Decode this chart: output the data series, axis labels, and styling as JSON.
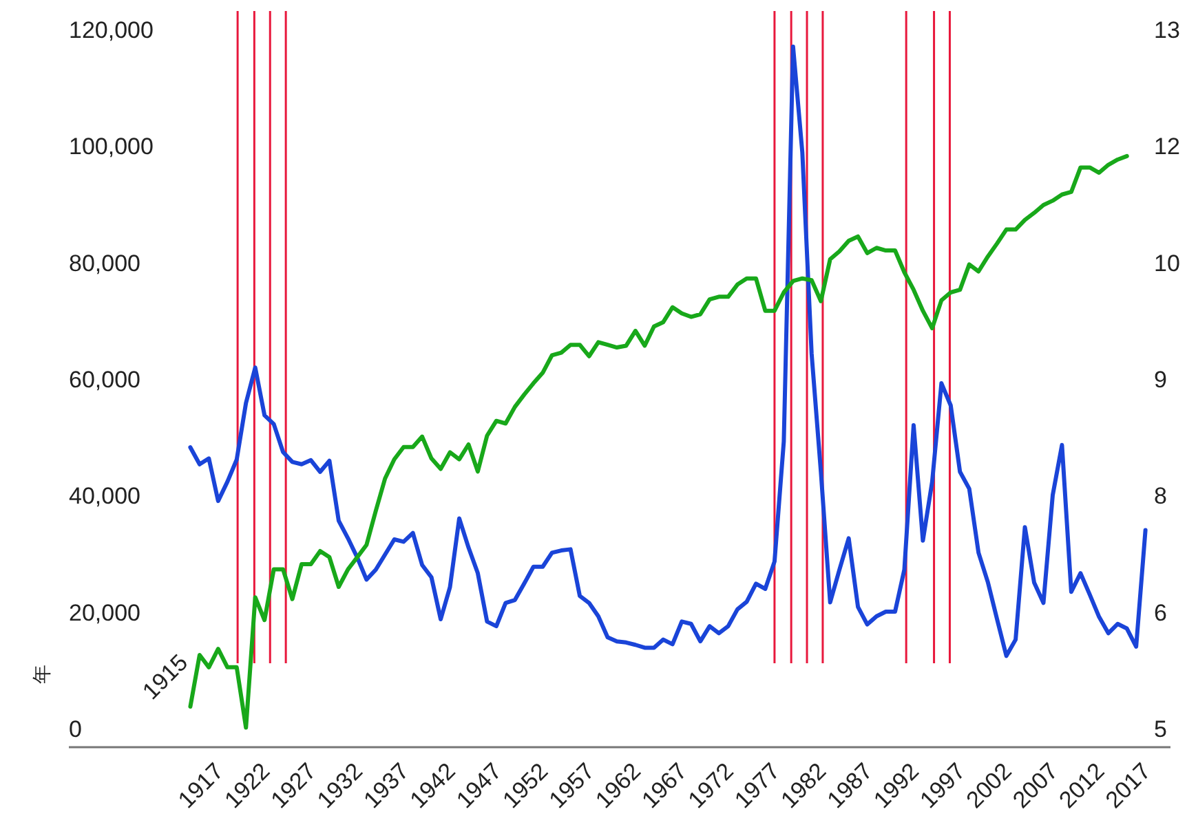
{
  "chart_data": {
    "type": "line",
    "ylabel": "年",
    "annotations": [
      "1915"
    ],
    "xlim": [
      1901.9,
      2020.7
    ],
    "xticks": [
      1917,
      1922,
      1927,
      1932,
      1937,
      1942,
      1947,
      1952,
      1957,
      1962,
      1967,
      1972,
      1977,
      1982,
      1987,
      1992,
      1997,
      2002,
      2007,
      2012,
      2017
    ],
    "ylim": [
      0,
      120000
    ],
    "yticks": [
      0,
      {
        "value": 20000,
        "label": "20,000"
      },
      {
        "value": 40000,
        "label": "40,000"
      },
      {
        "value": 60000,
        "label": "60,000"
      },
      {
        "value": 80000,
        "label": "80,000"
      },
      {
        "value": 100000,
        "label": "100,000"
      },
      {
        "value": 120000,
        "label": "120,000"
      }
    ],
    "y2lim": [
      5,
      13
    ],
    "y2ticks": [
      5,
      {
        "value": 6.333,
        "label": "6"
      },
      {
        "value": 7.667,
        "label": "8"
      },
      9,
      {
        "value": 10.333,
        "label": "10"
      },
      {
        "value": 11.667,
        "label": "12"
      },
      13
    ],
    "series": [
      {
        "color": "#1a44d8",
        "x": [
          1915,
          1916,
          1917,
          1918,
          1919,
          1920,
          1921,
          1922,
          1923,
          1924,
          1925,
          1926,
          1927,
          1928,
          1929,
          1930,
          1931,
          1932,
          1933,
          1934,
          1935,
          1936,
          1937,
          1938,
          1939,
          1940,
          1941,
          1942,
          1943,
          1944,
          1945,
          1946,
          1947,
          1948,
          1949,
          1950,
          1951,
          1952,
          1953,
          1954,
          1955,
          1956,
          1957,
          1958,
          1959,
          1960,
          1961,
          1962,
          1963,
          1964,
          1965,
          1966,
          1967,
          1968,
          1969,
          1970,
          1971,
          1972,
          1973,
          1974,
          1975,
          1976,
          1977,
          1978,
          1979,
          1980,
          1981,
          1982,
          1983,
          1984,
          1985,
          1986,
          1987,
          1988,
          1989,
          1990,
          1991,
          1992,
          1993,
          1994,
          1995,
          1996,
          1997,
          1998,
          1999,
          2000,
          2001,
          2002,
          2003,
          2004,
          2005,
          2006,
          2007,
          2008,
          2009,
          2010,
          2011,
          2012,
          2013,
          2014,
          2015,
          2016,
          2017,
          2018
        ],
        "values": [
          48400,
          45500,
          46500,
          39200,
          42500,
          46300,
          56000,
          62100,
          53900,
          52400,
          47600,
          45900,
          45500,
          46200,
          44200,
          46100,
          35800,
          32800,
          29500,
          25700,
          27400,
          30000,
          32600,
          32200,
          33700,
          28200,
          26100,
          18900,
          24400,
          36200,
          31200,
          26800,
          18500,
          17700,
          21700,
          22200,
          25000,
          27900,
          27900,
          30300,
          30700,
          30900,
          22900,
          21700,
          19400,
          15800,
          15100,
          14900,
          14500,
          14000,
          14000,
          15400,
          14600,
          18500,
          18100,
          15100,
          17700,
          16500,
          17700,
          20600,
          21900,
          25000,
          24100,
          28800,
          49400,
          117200,
          99000,
          64500,
          44200,
          21800,
          27400,
          32800,
          21000,
          18000,
          19400,
          20200,
          20200,
          27400,
          52200,
          32400,
          42500,
          59400,
          55600,
          44200,
          41300,
          30300,
          25300,
          18900,
          12600,
          15400,
          34700,
          25200,
          21700,
          40200,
          48800,
          23600,
          26800,
          23100,
          19300,
          16500,
          18100,
          17300,
          14200,
          34200
        ]
      },
      {
        "color": "#18a81a",
        "axis": "y2",
        "x": [
          1915,
          1916,
          1917,
          1918,
          1919,
          1920,
          1921,
          1922,
          1923,
          1924,
          1925,
          1926,
          1927,
          1928,
          1929,
          1930,
          1931,
          1932,
          1933,
          1934,
          1935,
          1936,
          1937,
          1938,
          1939,
          1940,
          1941,
          1942,
          1943,
          1944,
          1945,
          1946,
          1947,
          1948,
          1949,
          1950,
          1951,
          1952,
          1953,
          1954,
          1955,
          1956,
          1957,
          1958,
          1959,
          1960,
          1961,
          1962,
          1963,
          1964,
          1965,
          1966,
          1967,
          1968,
          1969,
          1970,
          1971,
          1972,
          1973,
          1974,
          1975,
          1976,
          1977,
          1978,
          1979,
          1980,
          1981,
          1982,
          1983,
          1984,
          1985,
          1986,
          1987,
          1988,
          1989,
          1990,
          1991,
          1992,
          1993,
          1994,
          1995,
          1996,
          1997,
          1998,
          1999,
          2000,
          2001,
          2002,
          2003,
          2004,
          2005,
          2006,
          2007,
          2008,
          2009,
          2010,
          2011,
          2012,
          2013,
          2014,
          2015,
          2016
        ],
        "values": [
          5.26,
          5.85,
          5.71,
          5.92,
          5.71,
          5.71,
          5.02,
          6.51,
          6.25,
          6.83,
          6.83,
          6.49,
          6.89,
          6.89,
          7.04,
          6.97,
          6.63,
          6.83,
          6.97,
          7.11,
          7.5,
          7.87,
          8.09,
          8.23,
          8.23,
          8.35,
          8.1,
          7.98,
          8.17,
          8.09,
          8.26,
          7.95,
          8.36,
          8.53,
          8.5,
          8.69,
          8.83,
          8.96,
          9.08,
          9.28,
          9.31,
          9.4,
          9.4,
          9.27,
          9.43,
          9.4,
          9.37,
          9.39,
          9.56,
          9.39,
          9.61,
          9.66,
          9.83,
          9.76,
          9.72,
          9.75,
          9.92,
          9.95,
          9.95,
          10.09,
          10.16,
          10.16,
          9.79,
          9.79,
          10.0,
          10.13,
          10.16,
          10.14,
          9.9,
          10.38,
          10.47,
          10.59,
          10.64,
          10.45,
          10.51,
          10.48,
          10.48,
          10.23,
          10.03,
          9.79,
          9.59,
          9.91,
          10.0,
          10.03,
          10.32,
          10.24,
          10.41,
          10.56,
          10.72,
          10.72,
          10.83,
          10.91,
          11.0,
          11.05,
          11.12,
          11.15,
          11.43,
          11.43,
          11.37,
          11.46,
          11.52,
          11.56
        ]
      }
    ],
    "ref_lines": [
      {
        "axis": "x",
        "value": 1920.1,
        "color": "#e8183c"
      },
      {
        "axis": "x",
        "value": 1921.9,
        "color": "#e8183c"
      },
      {
        "axis": "x",
        "value": 1923.6,
        "color": "#e8183c"
      },
      {
        "axis": "x",
        "value": 1925.3,
        "color": "#e8183c"
      },
      {
        "axis": "x",
        "value": 1978.0,
        "color": "#e8183c"
      },
      {
        "axis": "x",
        "value": 1979.8,
        "color": "#e8183c"
      },
      {
        "axis": "x",
        "value": 1981.5,
        "color": "#e8183c"
      },
      {
        "axis": "x",
        "value": 1983.2,
        "color": "#e8183c"
      },
      {
        "axis": "x",
        "value": 1992.2,
        "color": "#e8183c"
      },
      {
        "axis": "x",
        "value": 1995.2,
        "color": "#e8183c"
      },
      {
        "axis": "x",
        "value": 1996.9,
        "color": "#e8183c"
      }
    ]
  }
}
